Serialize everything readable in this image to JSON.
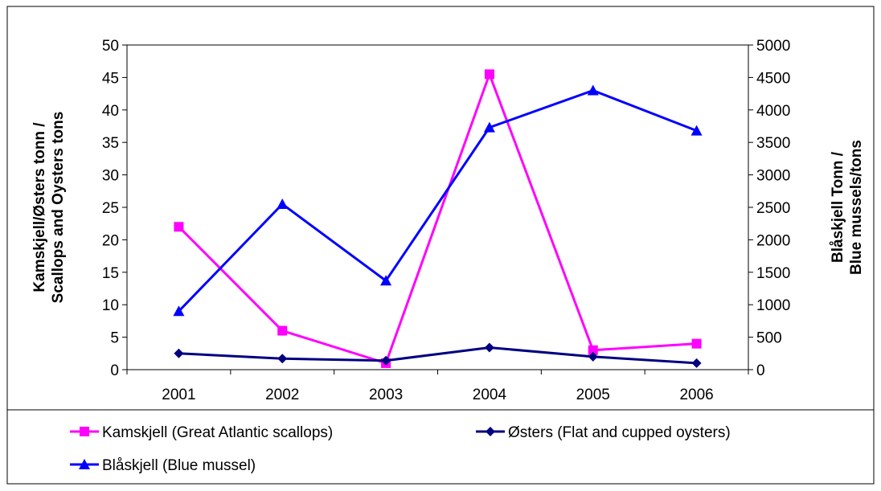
{
  "chart_data": {
    "type": "line",
    "categories": [
      "2001",
      "2002",
      "2003",
      "2004",
      "2005",
      "2006"
    ],
    "y_left": {
      "label_line1": "Kamskjell/Østers tonn /",
      "label_line2": "Scallops and Oysters tons",
      "ylim": [
        0,
        50
      ],
      "ticks": [
        "0",
        "5",
        "10",
        "15",
        "20",
        "25",
        "30",
        "35",
        "40",
        "45",
        "50"
      ]
    },
    "y_right": {
      "label_line1": "Blåskjell Tonn /",
      "label_line2": "Blue mussels/tons",
      "ylim": [
        0,
        5000
      ],
      "ticks": [
        "0",
        "500",
        "1000",
        "1500",
        "2000",
        "2500",
        "3000",
        "3500",
        "4000",
        "4500",
        "5000"
      ]
    },
    "series": [
      {
        "name": "Kamskjell (Great Atlantic scallops)",
        "axis": "left",
        "color": "#FF00FF",
        "marker": "square",
        "values": [
          22,
          6,
          1,
          45.5,
          3,
          4
        ]
      },
      {
        "name": "Østers (Flat and cupped oysters)",
        "axis": "left",
        "color": "#000080",
        "marker": "diamond",
        "values": [
          2.5,
          1.7,
          1.4,
          3.4,
          2,
          1
        ]
      },
      {
        "name": "Blåskjell (Blue mussel)",
        "axis": "right",
        "color": "#0000FF",
        "marker": "triangle",
        "values": [
          900,
          2550,
          1370,
          3730,
          4300,
          3680
        ]
      }
    ],
    "grid": false,
    "legend_position": "bottom"
  }
}
